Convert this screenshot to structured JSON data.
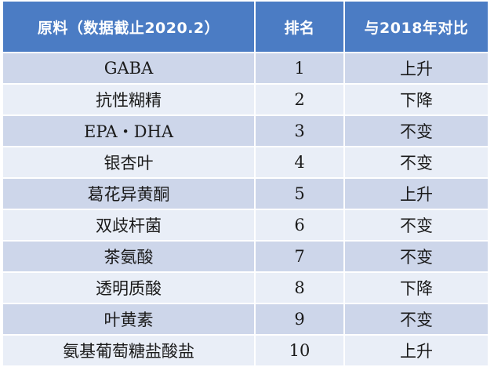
{
  "header": {
    "col1": "原料（数据截止2020.2）",
    "col2": "排名",
    "col3": "与2018年对比"
  },
  "rows": [
    {
      "material": "GABA",
      "rank": "1",
      "trend": "上升"
    },
    {
      "material": "抗性糊精",
      "rank": "2",
      "trend": "下降"
    },
    {
      "material": "EPA・DHA",
      "rank": "3",
      "trend": "不变"
    },
    {
      "material": "银杏叶",
      "rank": "4",
      "trend": "不变"
    },
    {
      "material": "葛花异黄酮",
      "rank": "5",
      "trend": "上升"
    },
    {
      "material": "双歧杆菌",
      "rank": "6",
      "trend": "不变"
    },
    {
      "material": "茶氨酸",
      "rank": "7",
      "trend": "不变"
    },
    {
      "material": "透明质酸",
      "rank": "8",
      "trend": "下降"
    },
    {
      "material": "叶黄素",
      "rank": "9",
      "trend": "不变"
    },
    {
      "material": "氨基葡萄糖盐酸盐",
      "rank": "10",
      "trend": "上升"
    }
  ],
  "colors": {
    "header_bg": "#4b7cc4",
    "row_odd_bg": "#cdd6ea",
    "row_even_bg": "#e9eef7"
  }
}
